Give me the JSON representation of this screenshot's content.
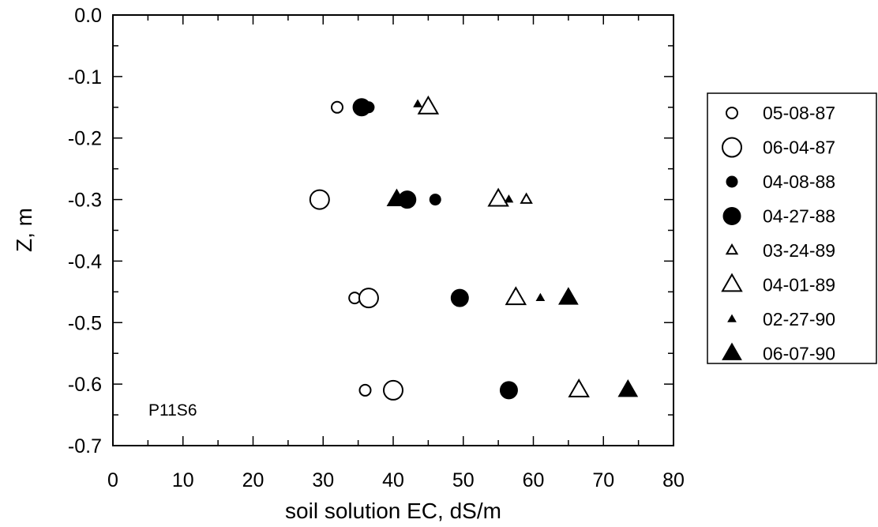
{
  "chart_data": {
    "type": "scatter",
    "title": "",
    "xlabel": "soil solution EC,  dS/m",
    "ylabel": "Z,  m",
    "xlim": [
      0,
      80
    ],
    "ylim": [
      -0.7,
      0.0
    ],
    "x_ticks": [
      "0",
      "10",
      "20",
      "30",
      "40",
      "50",
      "60",
      "70",
      "80"
    ],
    "y_ticks": [
      "0.0",
      "-0.1",
      "-0.2",
      "-0.3",
      "-0.4",
      "-0.5",
      "-0.6",
      "-0.7"
    ],
    "grid": false,
    "legend_position": "right",
    "annotation": "P11S6",
    "series": [
      {
        "name": "05-08-87",
        "marker": "circle-open-small",
        "points": [
          {
            "x": 32,
            "y": -0.15
          },
          {
            "x": 34.5,
            "y": -0.46
          },
          {
            "x": 36,
            "y": -0.61
          }
        ]
      },
      {
        "name": "06-04-87",
        "marker": "circle-open-large",
        "points": [
          {
            "x": 29.5,
            "y": -0.3
          },
          {
            "x": 36.5,
            "y": -0.46
          },
          {
            "x": 40,
            "y": -0.61
          }
        ]
      },
      {
        "name": "04-08-88",
        "marker": "circle-filled-small",
        "points": [
          {
            "x": 36.5,
            "y": -0.15
          },
          {
            "x": 46,
            "y": -0.3
          }
        ]
      },
      {
        "name": "04-27-88",
        "marker": "circle-filled-large",
        "points": [
          {
            "x": 35.5,
            "y": -0.15
          },
          {
            "x": 42,
            "y": -0.3
          },
          {
            "x": 49.5,
            "y": -0.46
          },
          {
            "x": 56.5,
            "y": -0.61
          }
        ]
      },
      {
        "name": "03-24-89",
        "marker": "triangle-open-small",
        "points": [
          {
            "x": 59,
            "y": -0.3
          }
        ]
      },
      {
        "name": "04-01-89",
        "marker": "triangle-open-large",
        "points": [
          {
            "x": 45,
            "y": -0.15
          },
          {
            "x": 55,
            "y": -0.3
          },
          {
            "x": 57.5,
            "y": -0.46
          },
          {
            "x": 66.5,
            "y": -0.61
          }
        ]
      },
      {
        "name": "02-27-90",
        "marker": "triangle-filled-small",
        "points": [
          {
            "x": 43.5,
            "y": -0.145
          },
          {
            "x": 56.5,
            "y": -0.3
          },
          {
            "x": 61,
            "y": -0.46
          }
        ]
      },
      {
        "name": "06-07-90",
        "marker": "triangle-filled-large",
        "points": [
          {
            "x": 40.5,
            "y": -0.3
          },
          {
            "x": 65,
            "y": -0.46
          },
          {
            "x": 73.5,
            "y": -0.61
          }
        ]
      }
    ]
  }
}
